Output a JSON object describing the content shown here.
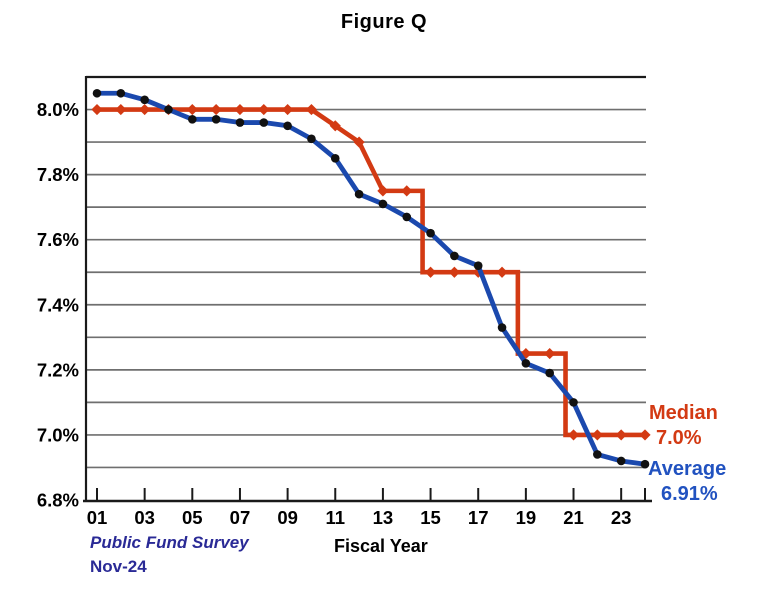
{
  "title": "Figure Q",
  "chart_data": {
    "type": "line",
    "title": "Figure Q",
    "xlabel": "Fiscal Year",
    "ylabel": "",
    "years": [
      "01",
      "02",
      "03",
      "04",
      "05",
      "06",
      "07",
      "08",
      "09",
      "10",
      "11",
      "12",
      "13",
      "14",
      "15",
      "16",
      "17",
      "18",
      "19",
      "20",
      "21",
      "22",
      "23",
      "24"
    ],
    "x_tick_labels": [
      "01",
      "03",
      "05",
      "07",
      "09",
      "11",
      "13",
      "15",
      "17",
      "19",
      "21",
      "23"
    ],
    "y_ticks": [
      {
        "value": 8.0,
        "label": "8.0%"
      },
      {
        "value": 7.8,
        "label": "7.8%"
      },
      {
        "value": 7.6,
        "label": "7.6%"
      },
      {
        "value": 7.4,
        "label": "7.4%"
      },
      {
        "value": 7.2,
        "label": "7.2%"
      },
      {
        "value": 7.0,
        "label": "7.0%"
      },
      {
        "value": 6.8,
        "label": "6.8%"
      }
    ],
    "ylim": [
      6.8,
      8.1
    ],
    "gridline_step": 0.1,
    "grid_on": true,
    "legend_position": "right-of-last-point",
    "series": [
      {
        "name": "Median",
        "color": "#d33a13",
        "marker": "diamond",
        "marker_color": "#d33a13",
        "latest_value_label": "7.0%",
        "values": [
          8.0,
          8.0,
          8.0,
          8.0,
          8.0,
          8.0,
          8.0,
          8.0,
          8.0,
          8.0,
          7.95,
          7.9,
          7.75,
          7.75,
          7.5,
          7.5,
          7.5,
          7.5,
          7.25,
          7.25,
          7.0,
          7.0,
          7.0,
          7.0
        ]
      },
      {
        "name": "Average",
        "color": "#1b49ae",
        "marker": "circle",
        "marker_color": "#111111",
        "latest_value_label": "6.91%",
        "values": [
          8.05,
          8.05,
          8.03,
          8.0,
          7.97,
          7.97,
          7.96,
          7.96,
          7.95,
          7.91,
          7.85,
          7.74,
          7.71,
          7.67,
          7.62,
          7.55,
          7.52,
          7.33,
          7.22,
          7.19,
          7.1,
          6.94,
          6.92,
          6.91
        ]
      }
    ],
    "axis_color": "#1a1a1a",
    "gridline_color": "#6f6f6f"
  },
  "annotations": {
    "median_label": "Median",
    "median_value": "7.0%",
    "average_label": "Average",
    "average_value": "6.91%"
  },
  "footer": {
    "source_line1": "Public Fund Survey",
    "source_line2": "Nov-24"
  }
}
